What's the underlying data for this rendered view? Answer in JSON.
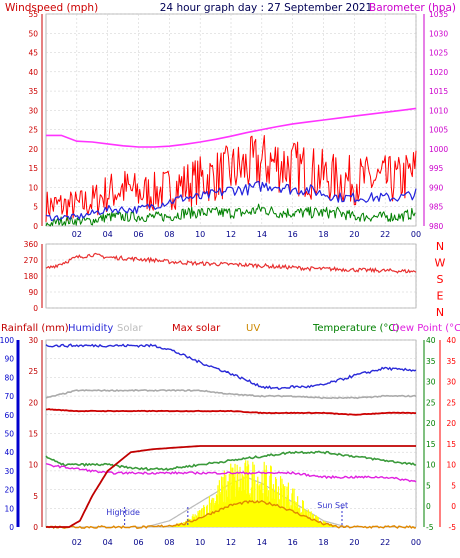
{
  "title": "24 hour graph day : 27 September 2021",
  "x_ticks": [
    "02",
    "04",
    "06",
    "08",
    "10",
    "12",
    "14",
    "16",
    "18",
    "20",
    "22",
    "00"
  ],
  "colors": {
    "windspeed": "#ff0000",
    "wind_avg": "#2222dd",
    "wind_low": "#008000",
    "barometer": "#ff33ff",
    "direction": "#e83030",
    "rain": "#c00000",
    "humidity": "#2a2ad8",
    "solar": "#aaaaaa",
    "maxsolar": "#cc0000",
    "uv": "#ffee00",
    "uv_fill": "#ffff00",
    "temp": "#3a9a3a",
    "dew": "#e020e0",
    "left_axis1": "#cc0000",
    "right_axis1": "#cc00cc",
    "blue_axis": "#0000cc",
    "green_axis": "#008000",
    "red_axis": "#ff0000",
    "grid": "#cccccc",
    "marker": "#3333cc"
  },
  "chart_data": [
    {
      "type": "line",
      "title": "24 hour graph day : 27 September 2021",
      "left_axis_label": "Windspeed (mph)",
      "right_axis_label": "Barometer (hpa)",
      "left_ticks": [
        0,
        5,
        10,
        15,
        20,
        25,
        30,
        35,
        40,
        45,
        50,
        55
      ],
      "right_ticks": [
        980,
        985,
        990,
        995,
        1000,
        1005,
        1010,
        1015,
        1020,
        1025,
        1030,
        1035
      ],
      "ylim_left": [
        0,
        55
      ],
      "ylim_right": [
        980,
        1035
      ],
      "x_hours": [
        0,
        24
      ],
      "series": [
        {
          "name": "Windspeed (mph)",
          "axis": "left",
          "x": [
            0,
            1,
            2,
            3,
            4,
            5,
            6,
            7,
            8,
            9,
            10,
            11,
            12,
            13,
            14,
            15,
            16,
            17,
            18,
            19,
            20,
            21,
            22,
            23,
            24
          ],
          "y": [
            4,
            4,
            4,
            5,
            7,
            8,
            7,
            7,
            8,
            9,
            10,
            11,
            12,
            13,
            14,
            14,
            13,
            12,
            11,
            10,
            10,
            10,
            10,
            10,
            12
          ]
        },
        {
          "name": "",
          "axis": "left",
          "x": [
            0,
            1,
            2,
            3,
            4,
            5,
            6,
            7,
            8,
            9,
            10,
            11,
            12,
            13,
            14,
            15,
            16,
            17,
            18,
            19,
            20,
            21,
            22,
            23,
            24
          ],
          "y": [
            2,
            2,
            2,
            3,
            4,
            4,
            4,
            5,
            6,
            7,
            7,
            8,
            9,
            9,
            10,
            10,
            9,
            9,
            8,
            7,
            7,
            7,
            7,
            7,
            8
          ]
        },
        {
          "name": "",
          "axis": "left",
          "x": [
            0,
            1,
            2,
            3,
            4,
            5,
            6,
            7,
            8,
            9,
            10,
            11,
            12,
            13,
            14,
            15,
            16,
            17,
            18,
            19,
            20,
            21,
            22,
            23,
            24
          ],
          "y": [
            0,
            1,
            1,
            1,
            2,
            2,
            2,
            2,
            2,
            3,
            3,
            3,
            3,
            3,
            4,
            3,
            3,
            3,
            3,
            3,
            2,
            2,
            2,
            2,
            3
          ]
        },
        {
          "name": "Barometer (hpa)",
          "axis": "right",
          "x": [
            0,
            1,
            2,
            3,
            4,
            5,
            6,
            7,
            8,
            9,
            10,
            11,
            12,
            13,
            14,
            15,
            16,
            17,
            18,
            19,
            20,
            21,
            22,
            23,
            24
          ],
          "y": [
            1003.5,
            1003.5,
            1002,
            1001.8,
            1001.3,
            1000.8,
            1000.5,
            1000.5,
            1000.7,
            1001.2,
            1001.8,
            1002.5,
            1003.3,
            1004.2,
            1005,
            1005.8,
            1006.5,
            1007,
            1007.5,
            1008,
            1008.5,
            1009,
            1009.5,
            1010,
            1010.5
          ]
        }
      ]
    },
    {
      "type": "line",
      "title": "",
      "left_ticks": [
        0,
        90,
        180,
        270,
        360
      ],
      "compass_labels": [
        "N",
        "W",
        "S",
        "E",
        "N"
      ],
      "ylim": [
        0,
        360
      ],
      "series": [
        {
          "name": "",
          "x": [
            0,
            1,
            2,
            3,
            4,
            5,
            6,
            7,
            8,
            9,
            10,
            11,
            12,
            13,
            14,
            15,
            16,
            17,
            18,
            19,
            20,
            21,
            22,
            23,
            24
          ],
          "y": [
            220,
            250,
            285,
            300,
            285,
            280,
            275,
            270,
            260,
            255,
            250,
            248,
            245,
            242,
            238,
            232,
            228,
            222,
            220,
            218,
            215,
            212,
            210,
            208,
            205
          ]
        }
      ]
    },
    {
      "type": "line",
      "legend": [
        "Rainfall (mm)",
        "Humidity",
        "Solar",
        "Max solar",
        "UV",
        "Temperature (°C)",
        "Dew Point (°C)"
      ],
      "humidity_ticks": [
        0,
        10,
        20,
        30,
        40,
        50,
        60,
        70,
        80,
        90,
        100
      ],
      "rain_ticks": [
        0,
        5,
        10,
        15,
        20,
        25,
        30
      ],
      "green_ticks": [
        -5,
        0,
        5,
        10,
        15,
        20,
        25,
        30,
        35,
        40
      ],
      "red_ticks": [
        -5,
        0,
        5,
        10,
        15,
        20,
        25,
        30,
        35,
        40
      ],
      "annotations": [
        "Hightide",
        "Sun Set"
      ],
      "series": [
        {
          "name": "Humidity",
          "axis": "humidity",
          "x": [
            0,
            2,
            4,
            6,
            7,
            8,
            10,
            12,
            14,
            15,
            16,
            17,
            18,
            20,
            22,
            23,
            24
          ],
          "y": [
            97,
            97,
            97,
            97,
            97,
            95,
            88,
            82,
            75,
            74,
            75,
            75,
            76,
            81,
            85,
            84,
            84
          ]
        },
        {
          "name": "Solar",
          "axis": "humidity",
          "x": [
            0,
            1,
            2,
            3,
            4,
            6,
            8,
            10,
            12,
            14,
            16,
            18,
            20,
            22,
            24
          ],
          "y": [
            69,
            71,
            73,
            73,
            73,
            73,
            73,
            73,
            71,
            70,
            70,
            69,
            69,
            70,
            70
          ]
        },
        {
          "name": "Max solar",
          "axis": "humidity",
          "x": [
            0,
            2,
            4,
            6,
            8,
            10,
            12,
            14,
            16,
            18,
            20,
            22,
            24
          ],
          "y": [
            63,
            62,
            62,
            62,
            62,
            62,
            62,
            61,
            61,
            61,
            60,
            61,
            61
          ]
        },
        {
          "name": "Rainfall (mm)",
          "axis": "rain",
          "x": [
            0,
            1.5,
            2.2,
            3,
            4,
            5,
            5.5,
            7,
            10,
            16,
            24
          ],
          "y": [
            0,
            0,
            1,
            5,
            9,
            11,
            12,
            12.5,
            13,
            13,
            13
          ]
        },
        {
          "name": "Temperature (°C)",
          "axis": "green",
          "x": [
            0,
            1,
            2,
            4,
            6,
            8,
            10,
            12,
            14,
            16,
            18,
            20,
            22,
            24
          ],
          "y": [
            12,
            10,
            10,
            10,
            9,
            9,
            10,
            11,
            12,
            13,
            13,
            12,
            11,
            10
          ]
        },
        {
          "name": "Dew Point (°C)",
          "axis": "green",
          "x": [
            0,
            2,
            4,
            6,
            8,
            10,
            12,
            14,
            16,
            18,
            20,
            22,
            24
          ],
          "y": [
            10,
            9,
            8,
            8,
            8,
            8,
            8,
            8,
            8,
            7,
            7,
            7,
            6
          ]
        },
        {
          "name": "UV",
          "axis": "rain",
          "x": [
            0,
            7,
            9,
            10,
            11,
            12,
            13,
            14,
            15,
            16,
            17,
            18,
            19,
            24
          ],
          "y": [
            0,
            0,
            0.5,
            1.5,
            2.5,
            3.5,
            4,
            4,
            3.5,
            2.5,
            1.5,
            0.5,
            0,
            0
          ]
        },
        {
          "name": "",
          "axis": "rain",
          "x": [
            0,
            6.5,
            8,
            10,
            12,
            13,
            14,
            16,
            18,
            19.5,
            24
          ],
          "y": [
            0,
            0,
            1,
            4,
            7,
            8,
            7,
            4,
            1,
            0,
            0
          ]
        },
        {
          "name": "",
          "axis": "rain",
          "x": [
            7,
            8,
            9,
            10,
            11,
            12,
            13,
            14,
            15,
            16,
            17,
            18,
            19
          ],
          "y": [
            0,
            0,
            1,
            3,
            7,
            11,
            11,
            11,
            9,
            7,
            3,
            1,
            0
          ]
        }
      ]
    }
  ]
}
